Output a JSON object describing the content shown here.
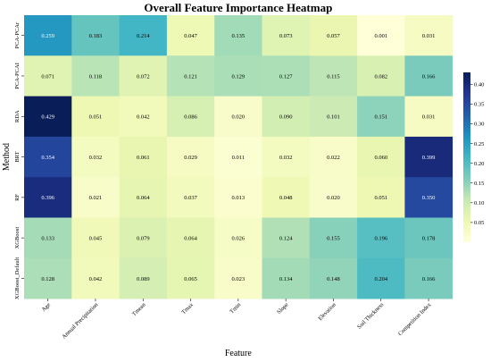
{
  "chart_data": {
    "type": "heatmap",
    "title": "Overall Feature Importance Heatmap",
    "xlabel": "Feature",
    "ylabel": "Method",
    "x_categories": [
      "Age",
      "Annual Precipitation",
      "Tmean",
      "Tmax",
      "Tmin",
      "Slope",
      "Elevation",
      "Soil Thickness",
      "Competition Index"
    ],
    "y_categories": [
      "PCA-PCAr",
      "PCA-PCAI",
      "RDA",
      "BRT",
      "RF",
      "XGBoost",
      "XGBoost_Default"
    ],
    "values": [
      [
        0.259,
        0.183,
        0.214,
        0.047,
        0.135,
        0.073,
        0.057,
        0.001,
        0.031
      ],
      [
        0.071,
        0.118,
        0.072,
        0.121,
        0.129,
        0.127,
        0.115,
        0.082,
        0.166
      ],
      [
        0.429,
        0.051,
        0.042,
        0.086,
        0.02,
        0.09,
        0.101,
        0.151,
        0.031
      ],
      [
        0.354,
        0.032,
        0.061,
        0.029,
        0.011,
        0.032,
        0.022,
        0.06,
        0.399
      ],
      [
        0.396,
        0.021,
        0.064,
        0.037,
        0.013,
        0.048,
        0.02,
        0.051,
        0.35
      ],
      [
        0.133,
        0.045,
        0.079,
        0.064,
        0.026,
        0.124,
        0.155,
        0.196,
        0.178
      ],
      [
        0.128,
        0.042,
        0.089,
        0.065,
        0.023,
        0.134,
        0.148,
        0.204,
        0.166
      ]
    ],
    "value_range": [
      0.0,
      0.43
    ],
    "colormap": "YlGnBu",
    "colorbar_ticks": [
      0.05,
      0.1,
      0.15,
      0.2,
      0.25,
      0.3,
      0.35,
      0.4
    ],
    "legend_placement": "right"
  }
}
